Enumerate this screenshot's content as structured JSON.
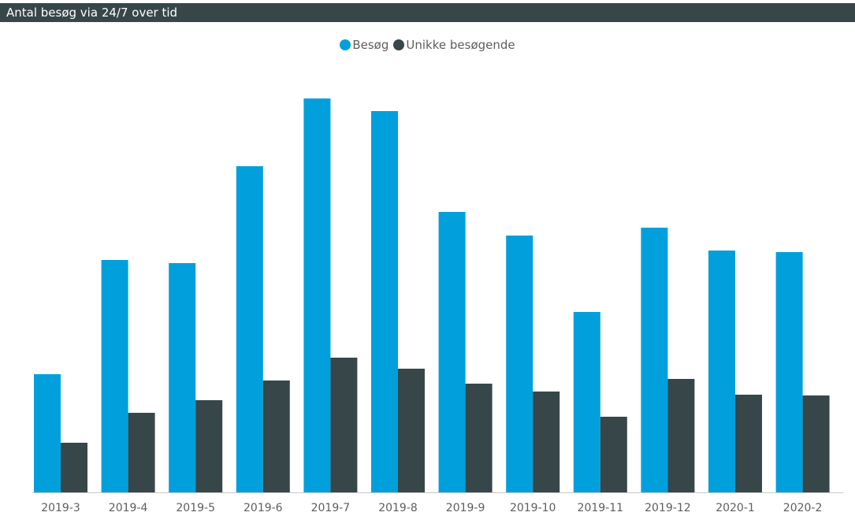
{
  "chart_data": {
    "type": "bar",
    "title": "Antal besøg via 24/7 over tid",
    "categories": [
      "2019-3",
      "2019-4",
      "2019-5",
      "2019-6",
      "2019-7",
      "2019-8",
      "2019-9",
      "2019-10",
      "2019-11",
      "2019-12",
      "2020-1",
      "2020-2"
    ],
    "series": [
      {
        "name": "Besøg",
        "color": "#01a0dc",
        "values": [
          150,
          295,
          291,
          414,
          500,
          484,
          356,
          326,
          229,
          336,
          307,
          305
        ]
      },
      {
        "name": "Unikke besøgende",
        "color": "#374649",
        "values": [
          63,
          101,
          117,
          142,
          171,
          157,
          138,
          128,
          96,
          144,
          124,
          123
        ]
      }
    ],
    "ylim": [
      0,
      520
    ],
    "grid": false,
    "legend_position": "top-center"
  }
}
